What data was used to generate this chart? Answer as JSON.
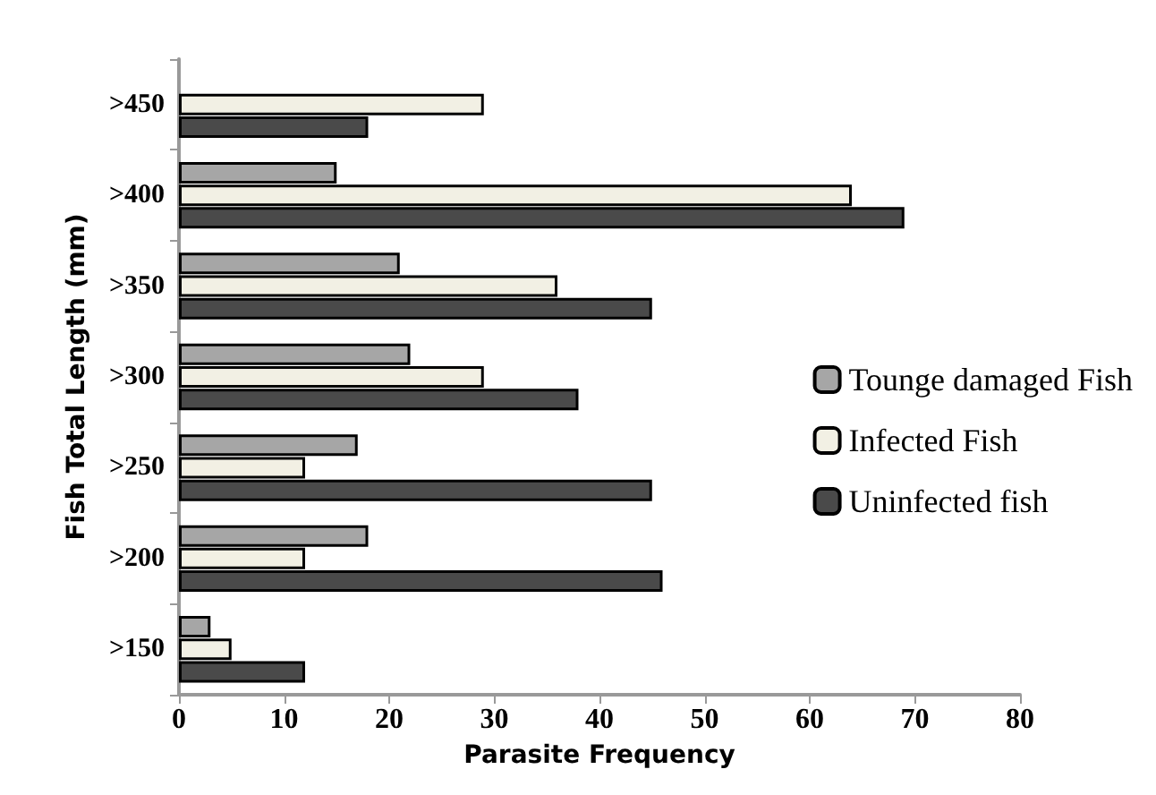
{
  "chart_data": {
    "type": "bar",
    "orientation": "horizontal",
    "xlabel": "Parasite Frequency",
    "ylabel": "Fish Total Length (mm)",
    "categories": [
      ">450",
      ">400",
      ">350",
      ">300",
      ">250",
      ">200",
      ">150"
    ],
    "series": [
      {
        "name": "Tounge damaged Fish",
        "color": "#a6a6a6",
        "values": [
          null,
          15,
          21,
          22,
          17,
          18,
          3
        ]
      },
      {
        "name": "Infected Fish",
        "color": "#f2f0e4",
        "values": [
          29,
          64,
          36,
          29,
          12,
          12,
          5
        ]
      },
      {
        "name": "Uninfected fish",
        "color": "#4a4a4a",
        "values": [
          18,
          69,
          45,
          38,
          45,
          46,
          12
        ]
      }
    ],
    "xlim": [
      0,
      80
    ],
    "xticks": [
      0,
      10,
      20,
      30,
      40,
      50,
      60,
      70,
      80
    ],
    "grid": false,
    "legend": "right"
  }
}
